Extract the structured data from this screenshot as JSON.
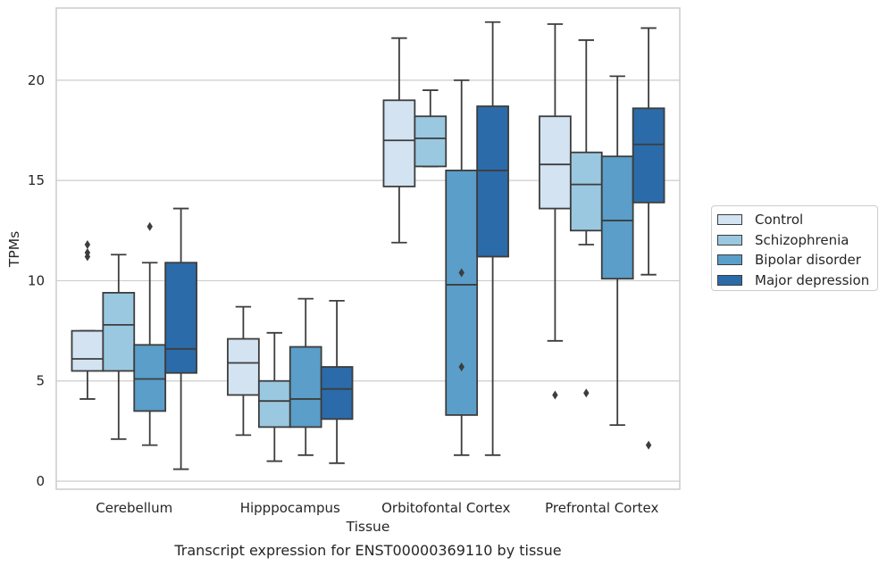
{
  "chart_data": {
    "type": "boxplot",
    "title": "Transcript expression for ENST00000369110 by tissue",
    "xlabel": "Tissue",
    "ylabel": "TPMs",
    "ylim": [
      -0.4,
      23.6
    ],
    "yticks": [
      0,
      5,
      10,
      15,
      20
    ],
    "grid": "horizontal",
    "legend_position": "right",
    "categories": [
      "Cerebellum",
      "Hipppocampus",
      "Orbitofontal Cortex",
      "Prefrontal Cortex"
    ],
    "series": [
      {
        "name": "Control",
        "color": "#d3e3f2",
        "boxes": [
          {
            "whislo": 4.1,
            "q1": 5.5,
            "med": 6.1,
            "q3": 7.5,
            "whishi": 7.5,
            "fliers": [
              11.2,
              11.4,
              11.8
            ]
          },
          {
            "whislo": 2.3,
            "q1": 4.3,
            "med": 5.9,
            "q3": 7.1,
            "whishi": 8.7,
            "fliers": []
          },
          {
            "whislo": 11.9,
            "q1": 14.7,
            "med": 17.0,
            "q3": 19.0,
            "whishi": 22.1,
            "fliers": []
          },
          {
            "whislo": 7.0,
            "q1": 13.6,
            "med": 15.8,
            "q3": 18.2,
            "whishi": 22.8,
            "fliers": [
              4.3
            ]
          }
        ]
      },
      {
        "name": "Schizophrenia",
        "color": "#9ac8e0",
        "boxes": [
          {
            "whislo": 2.1,
            "q1": 5.5,
            "med": 7.8,
            "q3": 9.4,
            "whishi": 11.3,
            "fliers": []
          },
          {
            "whislo": 1.0,
            "q1": 2.7,
            "med": 4.0,
            "q3": 5.0,
            "whishi": 7.4,
            "fliers": []
          },
          {
            "whislo": 15.7,
            "q1": 15.7,
            "med": 17.1,
            "q3": 18.2,
            "whishi": 19.5,
            "fliers": []
          },
          {
            "whislo": 11.8,
            "q1": 12.5,
            "med": 14.8,
            "q3": 16.4,
            "whishi": 22.0,
            "fliers": [
              4.4
            ]
          }
        ]
      },
      {
        "name": "Bipolar disorder",
        "color": "#5a9ec9",
        "boxes": [
          {
            "whislo": 1.8,
            "q1": 3.5,
            "med": 5.1,
            "q3": 6.8,
            "whishi": 10.9,
            "fliers": [
              12.7
            ]
          },
          {
            "whislo": 1.3,
            "q1": 2.7,
            "med": 4.1,
            "q3": 6.7,
            "whishi": 9.1,
            "fliers": []
          },
          {
            "whislo": 1.3,
            "q1": 3.3,
            "med": 9.8,
            "q3": 15.5,
            "whishi": 20.0,
            "fliers": [
              5.7,
              10.4
            ]
          },
          {
            "whislo": 2.8,
            "q1": 10.1,
            "med": 13.0,
            "q3": 16.2,
            "whishi": 20.2,
            "fliers": []
          }
        ]
      },
      {
        "name": "Major depression",
        "color": "#2b6ba9",
        "boxes": [
          {
            "whislo": 0.6,
            "q1": 5.4,
            "med": 6.6,
            "q3": 10.9,
            "whishi": 13.6,
            "fliers": []
          },
          {
            "whislo": 0.9,
            "q1": 3.1,
            "med": 4.6,
            "q3": 5.7,
            "whishi": 9.0,
            "fliers": []
          },
          {
            "whislo": 1.3,
            "q1": 11.2,
            "med": 15.5,
            "q3": 18.7,
            "whishi": 22.9,
            "fliers": []
          },
          {
            "whislo": 10.3,
            "q1": 13.9,
            "med": 16.8,
            "q3": 18.6,
            "whishi": 22.6,
            "fliers": [
              1.8
            ]
          }
        ]
      }
    ]
  }
}
